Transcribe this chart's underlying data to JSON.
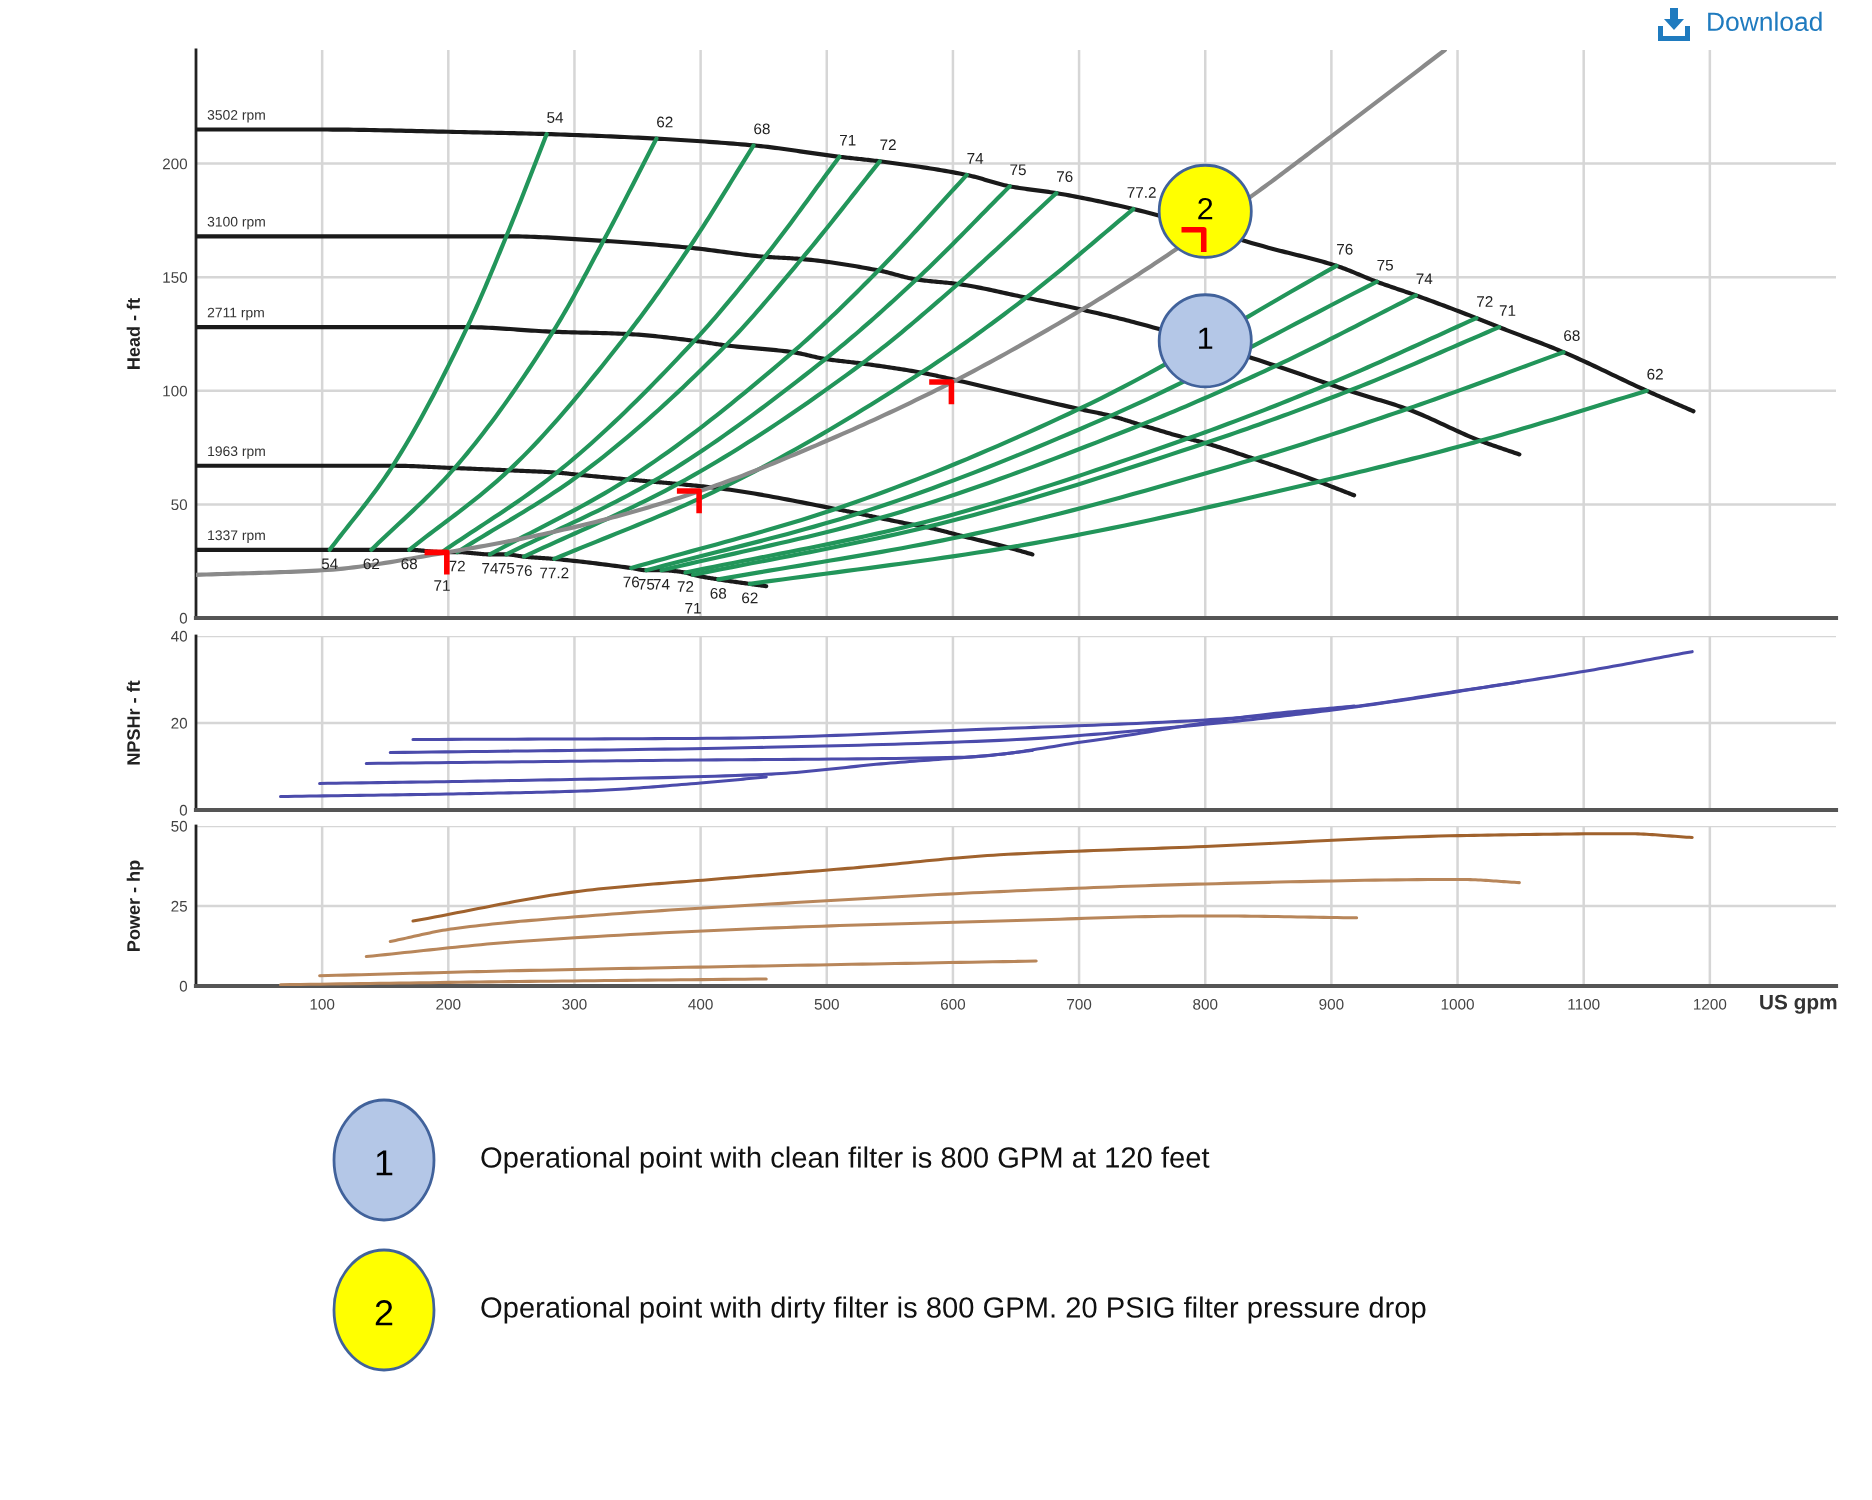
{
  "chart_data": [
    {
      "type": "line",
      "ylabel": "Head - ft",
      "xlim": [
        0,
        1300
      ],
      "ylim": [
        0,
        250
      ],
      "xticks": [
        100,
        200,
        300,
        400,
        500,
        600,
        700,
        800,
        900,
        1000,
        1100,
        1200
      ],
      "yticks": [
        0,
        50,
        100,
        150,
        200
      ],
      "tick_labels": "y",
      "grid": true,
      "annotations": [
        "Download",
        "1",
        "Operational point with clean filter is 800 GPM at 120 feet",
        "2",
        "Operational point with dirty filter is 800 GPM. 20 PSIG filter pressure drop",
        {
          "text": "1",
          "x": 800,
          "y": 122
        },
        {
          "text": "2",
          "x": 800,
          "y": 179
        },
        {
          "text": "54",
          "x": 106,
          "y": 30
        },
        {
          "text": "62",
          "x": 139,
          "y": 30
        },
        {
          "text": "68",
          "x": 169,
          "y": 30
        },
        {
          "text": "71",
          "x": 195,
          "y": 29
        },
        {
          "text": "72",
          "x": 207,
          "y": 29
        },
        {
          "text": "74",
          "x": 233,
          "y": 28
        },
        {
          "text": "75",
          "x": 246,
          "y": 28
        },
        {
          "text": "76",
          "x": 260,
          "y": 27
        },
        {
          "text": "77.2",
          "x": 284,
          "y": 26
        },
        {
          "text": "76",
          "x": 345,
          "y": 22
        },
        {
          "text": "75",
          "x": 357,
          "y": 21
        },
        {
          "text": "74",
          "x": 369,
          "y": 21
        },
        {
          "text": "72",
          "x": 388,
          "y": 20
        },
        {
          "text": "71",
          "x": 394,
          "y": 19
        },
        {
          "text": "68",
          "x": 414,
          "y": 17
        },
        {
          "text": "62",
          "x": 439,
          "y": 15
        },
        {
          "text": "54",
          "x": 278,
          "y": 213
        },
        {
          "text": "62",
          "x": 365,
          "y": 211
        },
        {
          "text": "68",
          "x": 442,
          "y": 208
        },
        {
          "text": "71",
          "x": 510,
          "y": 203
        },
        {
          "text": "72",
          "x": 542,
          "y": 201
        },
        {
          "text": "74",
          "x": 611,
          "y": 195
        },
        {
          "text": "75",
          "x": 645,
          "y": 190
        },
        {
          "text": "76",
          "x": 682,
          "y": 187
        },
        {
          "text": "77.2",
          "x": 743,
          "y": 180
        },
        {
          "text": "76",
          "x": 904,
          "y": 155
        },
        {
          "text": "75",
          "x": 936,
          "y": 148
        },
        {
          "text": "74",
          "x": 967,
          "y": 142
        },
        {
          "text": "72",
          "x": 1015,
          "y": 132
        },
        {
          "text": "71",
          "x": 1033,
          "y": 128
        },
        {
          "text": "68",
          "x": 1084,
          "y": 117
        },
        {
          "text": "62",
          "x": 1150,
          "y": 100
        }
      ],
      "series": [
        {
          "name": "3502 rpm",
          "color": "#1a1a1a",
          "x": [
            0,
            100,
            200,
            278,
            365,
            442,
            510,
            542,
            611,
            645,
            682,
            743,
            850,
            904,
            936,
            967,
            1015,
            1033,
            1084,
            1150,
            1187
          ],
          "values": [
            215,
            215,
            214,
            213,
            211,
            208,
            203,
            201,
            195,
            190,
            187,
            180,
            163,
            155,
            148,
            142,
            132,
            128,
            117,
            100,
            91
          ]
        },
        {
          "name": "3100 rpm",
          "color": "#1a1a1a",
          "x": [
            0,
            100,
            246,
            323,
            391,
            451,
            480,
            541,
            571,
            604,
            658,
            700,
            745,
            856,
            898,
            914,
            960,
            1018,
            1049
          ],
          "values": [
            168,
            168,
            168,
            166,
            163,
            159,
            158,
            153,
            149,
            147,
            141,
            136,
            130,
            111,
            103,
            100,
            92,
            78,
            72
          ]
        },
        {
          "name": "2711 rpm",
          "color": "#1a1a1a",
          "x": [
            0,
            100,
            215,
            283,
            342,
            395,
            420,
            473,
            499,
            528,
            575,
            600,
            700,
            725,
            749,
            786,
            800,
            839,
            890,
            918
          ],
          "values": [
            128,
            128,
            128,
            126,
            125,
            122,
            120,
            117,
            114,
            112,
            108,
            105,
            92,
            89,
            85,
            79,
            77,
            70,
            60,
            54
          ]
        },
        {
          "name": "1963 rpm",
          "color": "#1a1a1a",
          "x": [
            0,
            100,
            156,
            205,
            248,
            286,
            304,
            342,
            362,
            382,
            416,
            507,
            525,
            542,
            569,
            579,
            608,
            644,
            663
          ],
          "values": [
            67,
            67,
            67,
            66,
            65,
            64,
            63,
            61,
            60,
            59,
            57,
            48,
            46,
            44,
            41,
            40,
            36,
            31,
            28
          ]
        },
        {
          "name": "1337 rpm",
          "color": "#1a1a1a",
          "x": [
            0,
            106,
            139,
            169,
            195,
            207,
            233,
            246,
            260,
            284,
            345,
            357,
            369,
            388,
            394,
            414,
            439,
            452
          ],
          "values": [
            30,
            30,
            30,
            30,
            29,
            29,
            28,
            28,
            27,
            26,
            22,
            21,
            21,
            20,
            19,
            17,
            15,
            14
          ]
        },
        {
          "color": "#22955a",
          "x": [
            106,
            156,
            215,
            246,
            278
          ],
          "values": [
            30,
            67,
            128,
            168,
            213
          ]
        },
        {
          "color": "#22955a",
          "x": [
            139,
            205,
            283,
            323,
            365
          ],
          "values": [
            30,
            66,
            126,
            166,
            211
          ]
        },
        {
          "color": "#22955a",
          "x": [
            169,
            248,
            342,
            391,
            442
          ],
          "values": [
            30,
            65,
            125,
            163,
            208
          ]
        },
        {
          "color": "#22955a",
          "x": [
            195,
            286,
            395,
            451,
            510
          ],
          "values": [
            29,
            64,
            122,
            159,
            203
          ]
        },
        {
          "color": "#22955a",
          "x": [
            207,
            304,
            420,
            480,
            542
          ],
          "values": [
            29,
            63,
            120,
            158,
            201
          ]
        },
        {
          "color": "#22955a",
          "x": [
            233,
            342,
            473,
            541,
            611
          ],
          "values": [
            28,
            61,
            117,
            153,
            195
          ]
        },
        {
          "color": "#22955a",
          "x": [
            246,
            362,
            499,
            571,
            645
          ],
          "values": [
            28,
            60,
            114,
            149,
            190
          ]
        },
        {
          "color": "#22955a",
          "x": [
            260,
            382,
            528,
            604,
            682
          ],
          "values": [
            27,
            59,
            112,
            147,
            187
          ]
        },
        {
          "color": "#22955a",
          "x": [
            284,
            416,
            575,
            658,
            743
          ],
          "values": [
            26,
            57,
            108,
            141,
            180
          ]
        },
        {
          "color": "#22955a",
          "x": [
            345,
            507,
            700,
            904
          ],
          "values": [
            22,
            48,
            92,
            155
          ]
        },
        {
          "color": "#22955a",
          "x": [
            357,
            525,
            725,
            936
          ],
          "values": [
            21,
            46,
            89,
            148
          ]
        },
        {
          "color": "#22955a",
          "x": [
            369,
            542,
            749,
            856,
            967
          ],
          "values": [
            21,
            44,
            85,
            111,
            142
          ]
        },
        {
          "color": "#22955a",
          "x": [
            388,
            569,
            786,
            898,
            1015
          ],
          "values": [
            20,
            41,
            79,
            103,
            132
          ]
        },
        {
          "color": "#22955a",
          "x": [
            394,
            579,
            800,
            914,
            1033
          ],
          "values": [
            19,
            40,
            77,
            100,
            128
          ]
        },
        {
          "color": "#22955a",
          "x": [
            414,
            608,
            839,
            960,
            1084
          ],
          "values": [
            17,
            36,
            70,
            92,
            117
          ]
        },
        {
          "color": "#22955a",
          "x": [
            439,
            644,
            890,
            1018,
            1150
          ],
          "values": [
            15,
            31,
            60,
            78,
            100
          ]
        },
        {
          "color": "#8a8a8a",
          "x": [
            0,
            100,
            200,
            300,
            400,
            500,
            600,
            700,
            760,
            840,
            900,
            990
          ],
          "values": [
            19,
            21,
            29,
            40,
            56,
            78,
            104,
            135,
            156,
            187,
            212,
            250
          ]
        },
        {
          "type": "scatter",
          "color": "#ff0000",
          "x": [
            190,
            390,
            590,
            790
          ],
          "values": [
            24,
            51,
            99,
            166
          ]
        },
        {
          "type": "bubble",
          "colors": [
            "#b4c7e7",
            "#ffff00"
          ],
          "x": [
            800,
            800
          ],
          "values": [
            122,
            179
          ],
          "sizes": [
            1,
            1
          ]
        }
      ]
    },
    {
      "type": "line",
      "ylabel": "NPSHr - ft",
      "xlim": [
        0,
        1300
      ],
      "ylim": [
        0,
        40
      ],
      "xticks": [
        100,
        200,
        300,
        400,
        500,
        600,
        700,
        800,
        900,
        1000,
        1100,
        1200
      ],
      "yticks": [
        0,
        20,
        40
      ],
      "tick_labels": "y",
      "grid": true,
      "series": [
        {
          "color": "#4b4bab",
          "x": [
            172,
            415,
            637,
            800,
            901,
            1002,
            1101,
            1186
          ],
          "values": [
            16.2,
            16.5,
            18.7,
            20.7,
            23.2,
            27.4,
            31.9,
            36.4
          ]
        },
        {
          "color": "#4b4bab",
          "x": [
            154,
            415,
            637,
            800,
            901,
            1049
          ],
          "values": [
            13.2,
            14.2,
            16,
            19.7,
            23,
            29.4
          ]
        },
        {
          "color": "#4b4bab",
          "x": [
            135,
            362,
            605,
            711,
            843,
            918
          ],
          "values": [
            10.7,
            11.4,
            12.1,
            16,
            21.8,
            23.9
          ]
        },
        {
          "color": "#4b4bab",
          "x": [
            98,
            256,
            452,
            547,
            637,
            663
          ],
          "values": [
            6.1,
            6.8,
            8.2,
            10.7,
            12.8,
            13.7
          ]
        },
        {
          "color": "#4b4bab",
          "x": [
            67,
            204,
            310,
            400,
            452
          ],
          "values": [
            3.1,
            3.7,
            4.4,
            6.2,
            7.6
          ]
        }
      ]
    },
    {
      "type": "line",
      "xlabel": "US gpm",
      "ylabel": "Power - hp",
      "xlim": [
        0,
        1300
      ],
      "ylim": [
        0,
        50
      ],
      "xticks": [
        100,
        200,
        300,
        400,
        500,
        600,
        700,
        800,
        900,
        1000,
        1100,
        1200
      ],
      "yticks": [
        0,
        25,
        50
      ],
      "grid": true,
      "series": [
        {
          "color": "#a0622d",
          "x": [
            172,
            310,
            415,
            521,
            637,
            800,
            1002,
            1134,
            1186
          ],
          "values": [
            20.3,
            29.9,
            33.5,
            36.9,
            41,
            43.6,
            47,
            47.6,
            46.4
          ]
        },
        {
          "color": "#b8865a",
          "x": [
            154,
            204,
            310,
            468,
            637,
            800,
            1002,
            1049
          ],
          "values": [
            13.9,
            17.9,
            21.9,
            25.9,
            29.5,
            31.9,
            33.3,
            32.3
          ]
        },
        {
          "color": "#b8865a",
          "x": [
            135,
            256,
            468,
            637,
            800,
            920
          ],
          "values": [
            9.2,
            13.9,
            18.3,
            20.3,
            21.9,
            21.3
          ]
        },
        {
          "color": "#b8865a",
          "x": [
            98,
            256,
            468,
            666
          ],
          "values": [
            3.2,
            4.8,
            6.4,
            7.8
          ]
        },
        {
          "color": "#b8865a",
          "x": [
            67,
            256,
            452
          ],
          "values": [
            0.4,
            1.4,
            2.2
          ]
        }
      ]
    }
  ]
}
